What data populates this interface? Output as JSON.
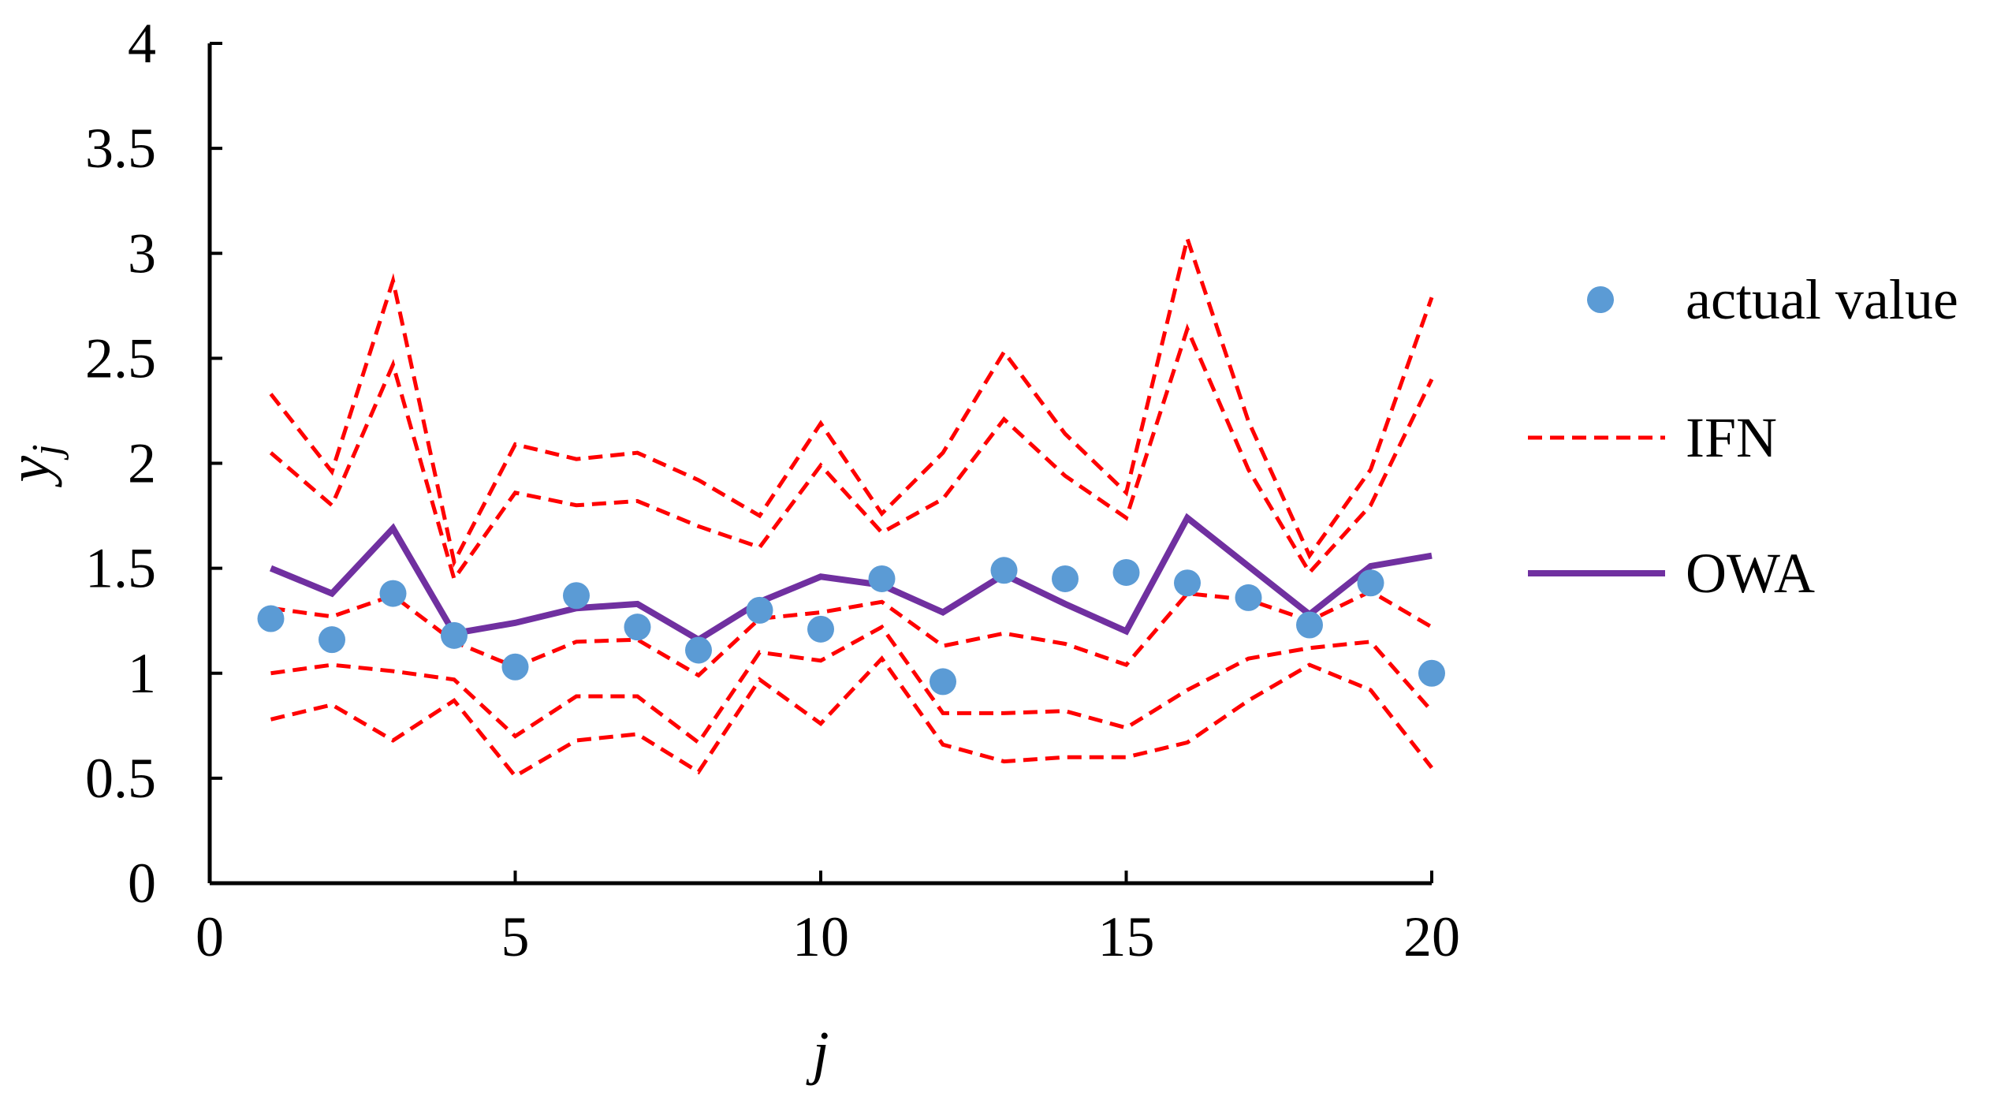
{
  "chart_data": {
    "type": "line",
    "xlabel": "j",
    "ylabel": "y",
    "ylabel_subscript": "j",
    "xlim": [
      0,
      20
    ],
    "ylim": [
      0,
      4
    ],
    "xticks": [
      0,
      5,
      10,
      15,
      20
    ],
    "yticks": [
      0,
      0.5,
      1,
      1.5,
      2,
      2.5,
      3,
      3.5,
      4
    ],
    "ytick_labels": [
      "0",
      "0.5",
      "1",
      "1.5",
      "2",
      "2.5",
      "3",
      "3.5",
      "4"
    ],
    "grid": false,
    "legend_position": "right",
    "x": [
      1,
      2,
      3,
      4,
      5,
      6,
      7,
      8,
      9,
      10,
      11,
      12,
      13,
      14,
      15,
      16,
      17,
      18,
      19,
      20
    ],
    "series": [
      {
        "name": "actual value",
        "kind": "scatter",
        "color": "#5B9BD5",
        "values": [
          1.26,
          1.16,
          1.38,
          1.18,
          1.03,
          1.37,
          1.22,
          1.11,
          1.3,
          1.21,
          1.45,
          0.96,
          1.49,
          1.45,
          1.48,
          1.43,
          1.36,
          1.23,
          1.43,
          1.0
        ]
      },
      {
        "name": "IFN",
        "kind": "dashed",
        "color": "#FF0000",
        "lines": [
          [
            2.33,
            1.96,
            2.87,
            1.53,
            2.09,
            2.02,
            2.05,
            1.92,
            1.75,
            2.19,
            1.76,
            2.05,
            2.53,
            2.14,
            1.86,
            3.07,
            2.2,
            1.56,
            1.97,
            2.79
          ],
          [
            2.05,
            1.8,
            2.47,
            1.45,
            1.86,
            1.8,
            1.82,
            1.7,
            1.6,
            1.99,
            1.67,
            1.83,
            2.21,
            1.94,
            1.74,
            2.64,
            1.97,
            1.48,
            1.8,
            2.4
          ],
          [
            1.31,
            1.27,
            1.37,
            1.15,
            1.03,
            1.15,
            1.16,
            0.99,
            1.26,
            1.29,
            1.34,
            1.13,
            1.19,
            1.14,
            1.04,
            1.38,
            1.35,
            1.25,
            1.39,
            1.22
          ],
          [
            1.0,
            1.04,
            1.01,
            0.97,
            0.7,
            0.89,
            0.89,
            0.67,
            1.1,
            1.06,
            1.22,
            0.81,
            0.81,
            0.82,
            0.74,
            0.92,
            1.07,
            1.12,
            1.15,
            0.82
          ],
          [
            0.78,
            0.85,
            0.68,
            0.87,
            0.51,
            0.68,
            0.71,
            0.53,
            0.97,
            0.76,
            1.07,
            0.66,
            0.58,
            0.6,
            0.6,
            0.67,
            0.87,
            1.04,
            0.92,
            0.55
          ]
        ]
      },
      {
        "name": "OWA",
        "kind": "solid",
        "color": "#7030A0",
        "values": [
          1.5,
          1.38,
          1.69,
          1.19,
          1.24,
          1.31,
          1.33,
          1.16,
          1.34,
          1.46,
          1.42,
          1.29,
          1.47,
          1.33,
          1.2,
          1.74,
          1.51,
          1.28,
          1.51,
          1.56
        ]
      }
    ]
  }
}
